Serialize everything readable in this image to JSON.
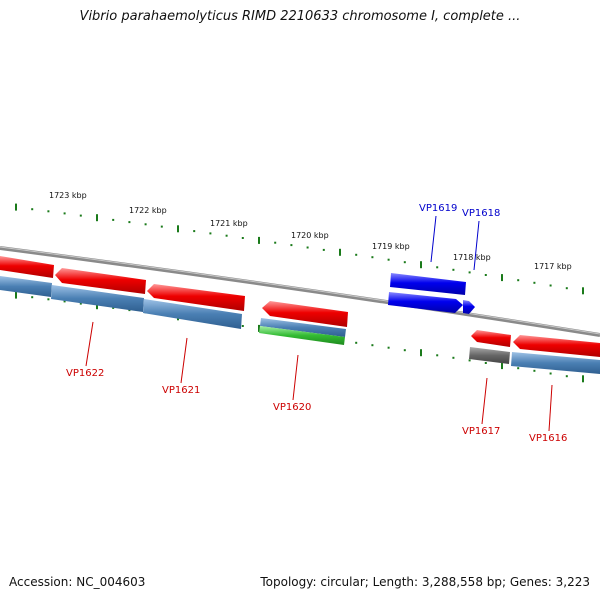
{
  "title": "Vibrio parahaemolyticus RIMD 2210633 chromosome I, complete ...",
  "footer": {
    "accession": "Accession: NC_004603",
    "summary": "Topology: circular; Length: 3,288,558 bp; Genes: 3,223"
  },
  "colors": {
    "forward_gene": "#0000ee",
    "reverse_gene": "#ee0000",
    "cds": "#4a7fb3",
    "rna": "#33bb33",
    "pseudo": "#666666",
    "ticks": "#1a7a1a",
    "backbone": "#8a8a8a"
  },
  "scale_labels": [
    "1723 kbp",
    "1722 kbp",
    "1721 kbp",
    "1720 kbp",
    "1719 kbp",
    "1718 kbp",
    "1717 kbp"
  ],
  "genes": [
    {
      "name": "VP1622",
      "strand": "reverse"
    },
    {
      "name": "VP1621",
      "strand": "reverse"
    },
    {
      "name": "VP1620",
      "strand": "reverse"
    },
    {
      "name": "VP1619",
      "strand": "forward"
    },
    {
      "name": "VP1618",
      "strand": "forward"
    },
    {
      "name": "VP1617",
      "strand": "reverse"
    },
    {
      "name": "VP1616",
      "strand": "reverse"
    }
  ]
}
